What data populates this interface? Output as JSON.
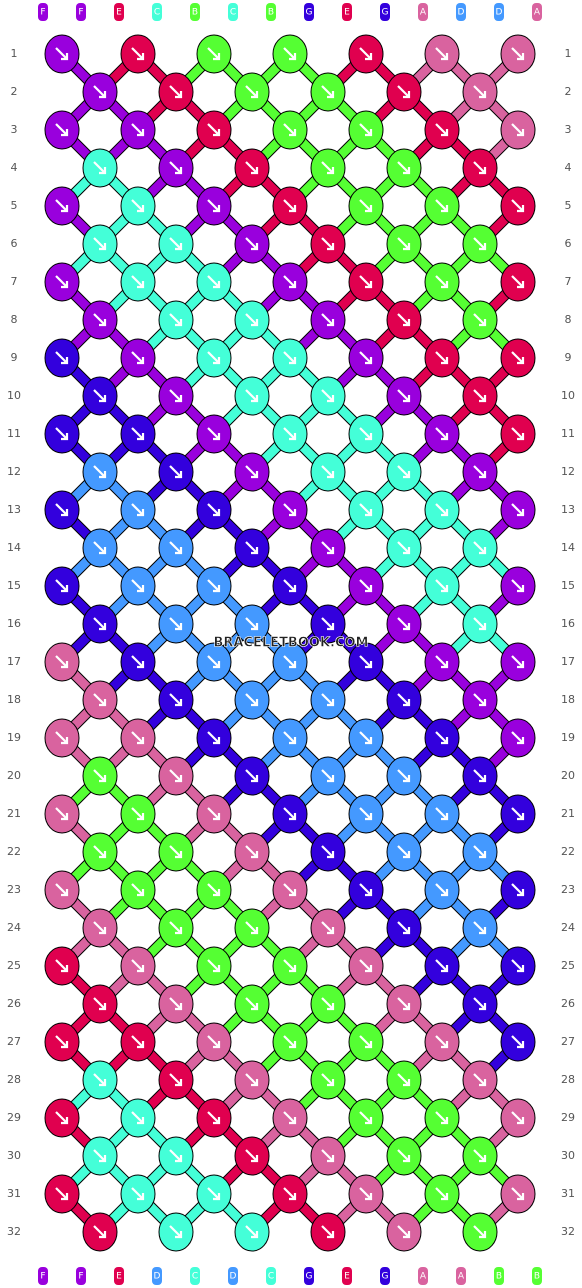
{
  "palette": {
    "A": "#d9639f",
    "B": "#55ff33",
    "C": "#44ffd8",
    "D": "#4499ff",
    "E": "#e0004f",
    "F": "#9900dd",
    "G": "#3300dd"
  },
  "strands_top": [
    "F",
    "F",
    "E",
    "C",
    "B",
    "C",
    "B",
    "G",
    "E",
    "G",
    "A",
    "D",
    "D",
    "A"
  ],
  "strands_bottom": [
    "F",
    "F",
    "E",
    "D",
    "C",
    "D",
    "C",
    "G",
    "E",
    "G",
    "A",
    "A",
    "B",
    "B"
  ],
  "watermark": "BRACELETBOOK.COM",
  "rows": [
    {
      "label": "1",
      "knots": [
        "F",
        "E",
        "B",
        "B",
        "E",
        "A",
        "A"
      ]
    },
    {
      "label": "2",
      "knots": [
        "F",
        "E",
        "B",
        "B",
        "E",
        "A"
      ]
    },
    {
      "label": "3",
      "knots": [
        "F",
        "F",
        "E",
        "B",
        "B",
        "E",
        "A"
      ]
    },
    {
      "label": "4",
      "knots": [
        "C",
        "F",
        "E",
        "B",
        "B",
        "E"
      ]
    },
    {
      "label": "5",
      "knots": [
        "F",
        "C",
        "F",
        "E",
        "B",
        "B",
        "E"
      ]
    },
    {
      "label": "6",
      "knots": [
        "C",
        "C",
        "F",
        "E",
        "B",
        "B"
      ]
    },
    {
      "label": "7",
      "knots": [
        "F",
        "C",
        "C",
        "F",
        "E",
        "B",
        "E"
      ]
    },
    {
      "label": "8",
      "knots": [
        "F",
        "C",
        "C",
        "F",
        "E",
        "B"
      ]
    },
    {
      "label": "9",
      "knots": [
        "G",
        "F",
        "C",
        "C",
        "F",
        "E",
        "E"
      ]
    },
    {
      "label": "10",
      "knots": [
        "G",
        "F",
        "C",
        "C",
        "F",
        "E"
      ]
    },
    {
      "label": "11",
      "knots": [
        "G",
        "G",
        "F",
        "C",
        "C",
        "F",
        "E"
      ]
    },
    {
      "label": "12",
      "knots": [
        "D",
        "G",
        "F",
        "C",
        "C",
        "F"
      ]
    },
    {
      "label": "13",
      "knots": [
        "G",
        "D",
        "G",
        "F",
        "C",
        "C",
        "F"
      ]
    },
    {
      "label": "14",
      "knots": [
        "D",
        "D",
        "G",
        "F",
        "C",
        "C"
      ]
    },
    {
      "label": "15",
      "knots": [
        "G",
        "D",
        "D",
        "G",
        "F",
        "C",
        "F"
      ]
    },
    {
      "label": "16",
      "knots": [
        "G",
        "D",
        "D",
        "G",
        "F",
        "C"
      ]
    },
    {
      "label": "17",
      "knots": [
        "A",
        "G",
        "D",
        "D",
        "G",
        "F",
        "F"
      ]
    },
    {
      "label": "18",
      "knots": [
        "A",
        "G",
        "D",
        "D",
        "G",
        "F"
      ]
    },
    {
      "label": "19",
      "knots": [
        "A",
        "A",
        "G",
        "D",
        "D",
        "G",
        "F"
      ]
    },
    {
      "label": "20",
      "knots": [
        "B",
        "A",
        "G",
        "D",
        "D",
        "G"
      ]
    },
    {
      "label": "21",
      "knots": [
        "A",
        "B",
        "A",
        "G",
        "D",
        "D",
        "G"
      ]
    },
    {
      "label": "22",
      "knots": [
        "B",
        "B",
        "A",
        "G",
        "D",
        "D"
      ]
    },
    {
      "label": "23",
      "knots": [
        "A",
        "B",
        "B",
        "A",
        "G",
        "D",
        "G"
      ]
    },
    {
      "label": "24",
      "knots": [
        "A",
        "B",
        "B",
        "A",
        "G",
        "D"
      ]
    },
    {
      "label": "25",
      "knots": [
        "E",
        "A",
        "B",
        "B",
        "A",
        "G",
        "G"
      ]
    },
    {
      "label": "26",
      "knots": [
        "E",
        "A",
        "B",
        "B",
        "A",
        "G"
      ]
    },
    {
      "label": "27",
      "knots": [
        "E",
        "E",
        "A",
        "B",
        "B",
        "A",
        "G"
      ]
    },
    {
      "label": "28",
      "knots": [
        "C",
        "E",
        "A",
        "B",
        "B",
        "A"
      ]
    },
    {
      "label": "29",
      "knots": [
        "E",
        "C",
        "E",
        "A",
        "B",
        "B",
        "A"
      ]
    },
    {
      "label": "30",
      "knots": [
        "C",
        "C",
        "E",
        "A",
        "B",
        "B"
      ]
    },
    {
      "label": "31",
      "knots": [
        "E",
        "C",
        "C",
        "E",
        "A",
        "B",
        "A"
      ]
    },
    {
      "label": "32",
      "knots": [
        "E",
        "C",
        "C",
        "E",
        "A",
        "B"
      ]
    }
  ]
}
